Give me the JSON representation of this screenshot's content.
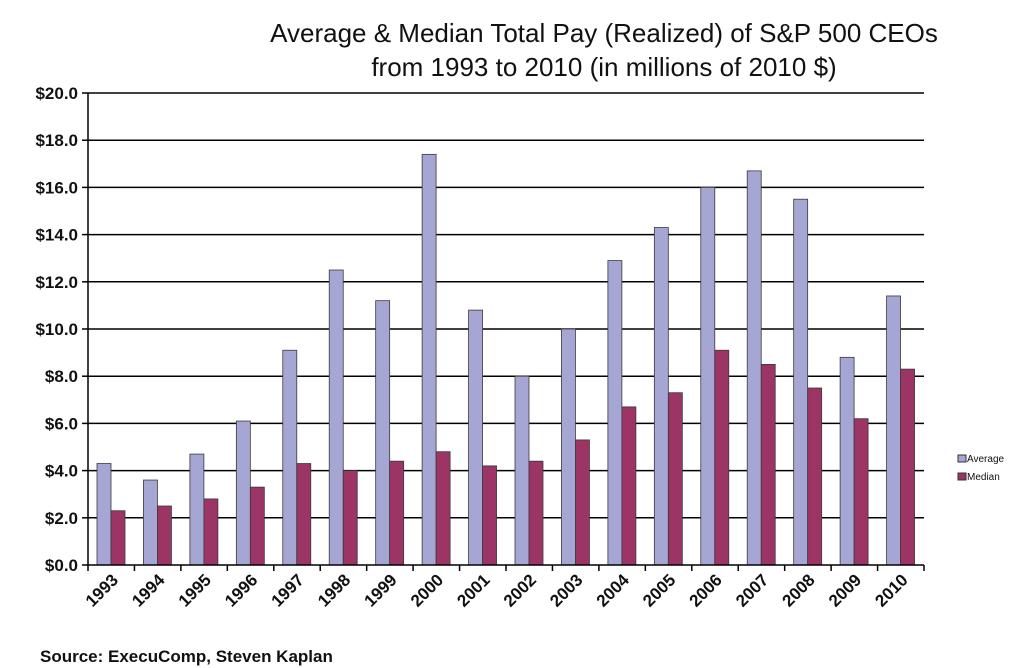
{
  "chart_data": {
    "type": "bar",
    "title_line1": "Average & Median Total Pay (Realized) of S&P 500 CEOs",
    "title_line2": "from 1993 to 2010 (in millions of 2010 $)",
    "categories": [
      "1993",
      "1994",
      "1995",
      "1996",
      "1997",
      "1998",
      "1999",
      "2000",
      "2001",
      "2002",
      "2003",
      "2004",
      "2005",
      "2006",
      "2007",
      "2008",
      "2009",
      "2010"
    ],
    "series": [
      {
        "name": "Average",
        "color": "#a6a6d4",
        "values": [
          4.3,
          3.6,
          4.7,
          6.1,
          9.1,
          12.5,
          11.2,
          17.4,
          10.8,
          8.0,
          10.0,
          12.9,
          14.3,
          16.0,
          16.7,
          15.5,
          8.8,
          11.4
        ]
      },
      {
        "name": "Median",
        "color": "#9c3465",
        "values": [
          2.3,
          2.5,
          2.8,
          3.3,
          4.3,
          4.0,
          4.4,
          4.8,
          4.2,
          4.4,
          5.3,
          6.7,
          7.3,
          9.1,
          8.5,
          7.5,
          6.2,
          8.3
        ]
      }
    ],
    "ylim": [
      0,
      20
    ],
    "yticks": [
      "$0.0",
      "$2.0",
      "$4.0",
      "$6.0",
      "$8.0",
      "$10.0",
      "$12.0",
      "$14.0",
      "$16.0",
      "$18.0",
      "$20.0"
    ],
    "ytick_values": [
      0,
      2,
      4,
      6,
      8,
      10,
      12,
      14,
      16,
      18,
      20
    ],
    "grid": true,
    "legend_position": "right",
    "source": "Source:  ExecuComp, Steven Kaplan"
  }
}
